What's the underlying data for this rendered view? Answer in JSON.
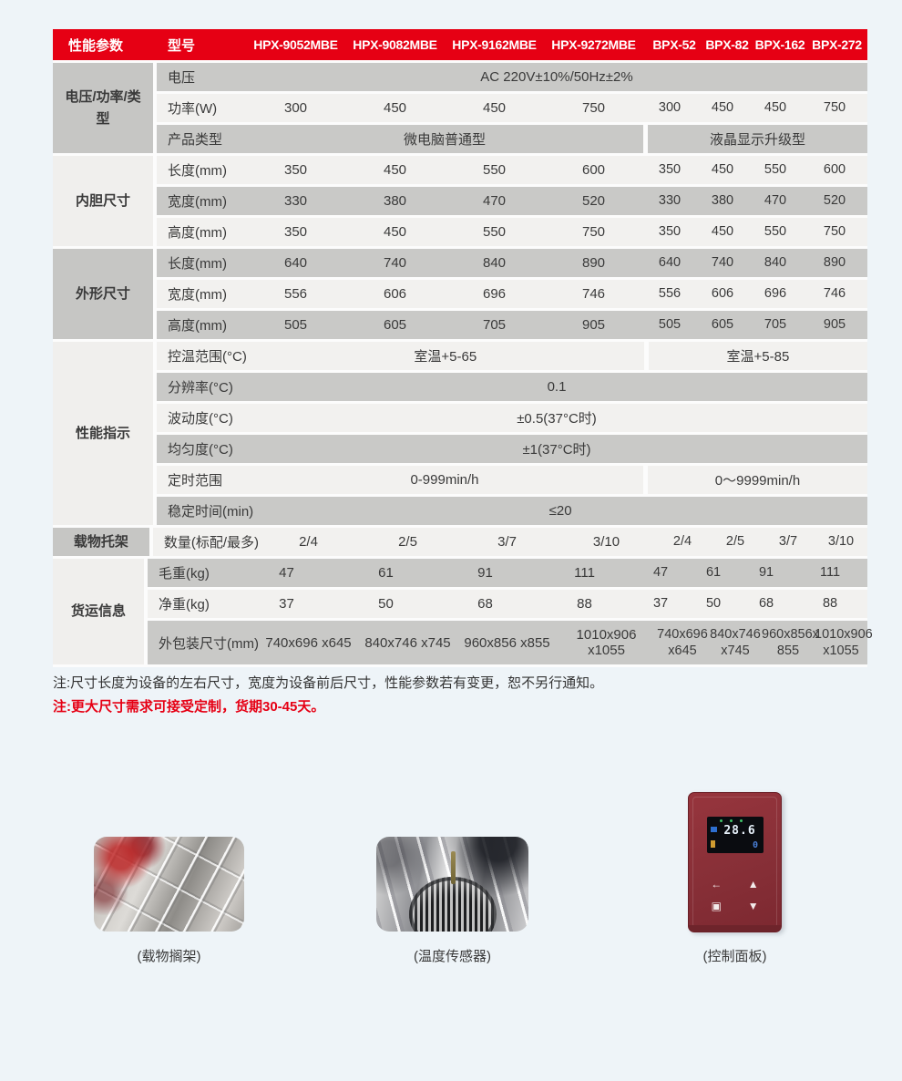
{
  "colors": {
    "accent_red": "#e60014",
    "row_dark": "#c9c9c7",
    "row_light": "#f2f1ef",
    "page_background": "#eef4f8"
  },
  "table": {
    "header": {
      "col1": "性能参数",
      "col2": "型号",
      "models": [
        "HPX-9052MBE",
        "HPX-9082MBE",
        "HPX-9162MBE",
        "HPX-9272MBE",
        "BPX-52",
        "BPX-82",
        "BPX-162",
        "BPX-272"
      ]
    },
    "groups": [
      {
        "name": "电压/功率/类型",
        "rows": [
          {
            "label": "电压",
            "value": "AC 220V±10%/50Hz±2%"
          },
          {
            "label": "功率(W)",
            "values": [
              "300",
              "450",
              "450",
              "750",
              "300",
              "450",
              "450",
              "750"
            ]
          },
          {
            "label": "产品类型",
            "left": "微电脑普通型",
            "right": "液晶显示升级型"
          }
        ]
      },
      {
        "name": "内胆尺寸",
        "rows": [
          {
            "label": "长度(mm)",
            "values": [
              "350",
              "450",
              "550",
              "600",
              "350",
              "450",
              "550",
              "600"
            ]
          },
          {
            "label": "宽度(mm)",
            "values": [
              "330",
              "380",
              "470",
              "520",
              "330",
              "380",
              "470",
              "520"
            ]
          },
          {
            "label": "高度(mm)",
            "values": [
              "350",
              "450",
              "550",
              "750",
              "350",
              "450",
              "550",
              "750"
            ]
          }
        ]
      },
      {
        "name": "外形尺寸",
        "rows": [
          {
            "label": "长度(mm)",
            "values": [
              "640",
              "740",
              "840",
              "890",
              "640",
              "740",
              "840",
              "890"
            ]
          },
          {
            "label": "宽度(mm)",
            "values": [
              "556",
              "606",
              "696",
              "746",
              "556",
              "606",
              "696",
              "746"
            ]
          },
          {
            "label": "高度(mm)",
            "values": [
              "505",
              "605",
              "705",
              "905",
              "505",
              "605",
              "705",
              "905"
            ]
          }
        ]
      },
      {
        "name": "性能指示",
        "rows": [
          {
            "label": "控温范围(°C)",
            "left": "室温+5-65",
            "right": "室温+5-85"
          },
          {
            "label": "分辨率(°C)",
            "value": "0.1"
          },
          {
            "label": "波动度(°C)",
            "value": "±0.5(37°C时)"
          },
          {
            "label": "均匀度(°C)",
            "value": "±1(37°C时)"
          },
          {
            "label": "定时范围",
            "left": "0-999min/h",
            "right": "0～9999min/h"
          },
          {
            "label": "稳定时间(min)",
            "value": "≤20"
          }
        ]
      },
      {
        "name": "载物托架",
        "rows": [
          {
            "label": "数量(标配/最多)",
            "values": [
              "2/4",
              "2/5",
              "3/7",
              "3/10",
              "2/4",
              "2/5",
              "3/7",
              "3/10"
            ]
          }
        ]
      },
      {
        "name": "货运信息",
        "rows": [
          {
            "label": "毛重(kg)",
            "values": [
              "47",
              "61",
              "91",
              "111",
              "47",
              "61",
              "91",
              "111"
            ]
          },
          {
            "label": "净重(kg)",
            "values": [
              "37",
              "50",
              "68",
              "88",
              "37",
              "50",
              "68",
              "88"
            ]
          },
          {
            "label": "外包装尺寸(mm)",
            "values": [
              "740x696\nx645",
              "840x746\nx745",
              "960x856\nx855",
              "1010x906\nx1055",
              "740x696\nx645",
              "840x746\nx745",
              "960x856x\n855",
              "1010x906\nx1055"
            ]
          }
        ]
      }
    ]
  },
  "notes": {
    "dimensions": "注:尺寸长度为设备的左右尺寸，宽度为设备前后尺寸，性能参数若有变更，恕不另行通知。",
    "customization": "注:更大尺寸需求可接受定制，货期30-45天。"
  },
  "panel": {
    "reading": "28.6",
    "secondary": "0",
    "buttons": [
      {
        "name": "return",
        "glyph": "←"
      },
      {
        "name": "up",
        "glyph": "▲"
      },
      {
        "name": "set",
        "glyph": "▣"
      },
      {
        "name": "down",
        "glyph": "▼"
      }
    ]
  },
  "captions": {
    "shelf": "(载物搁架)",
    "sensor": "(温度传感器)",
    "panel": "(控制面板)"
  }
}
